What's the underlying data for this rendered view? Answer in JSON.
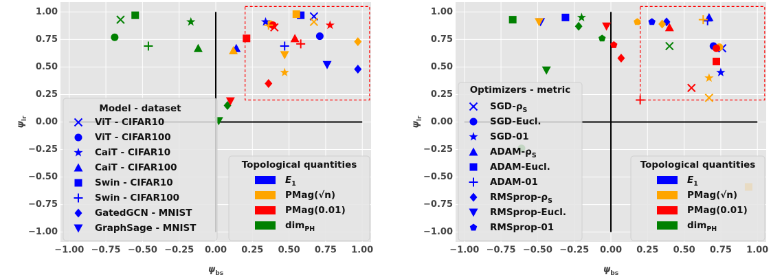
{
  "chart_data": [
    {
      "type": "scatter",
      "xlim": [
        -1.06,
        1.06
      ],
      "ylim": [
        -1.09,
        1.09
      ],
      "xticks": [
        {
          "value": -1,
          "label": "−1.00"
        },
        {
          "value": -0.75,
          "label": "−0.75"
        },
        {
          "value": -0.5,
          "label": "−0.50"
        },
        {
          "value": -0.25,
          "label": "−0.25"
        },
        {
          "value": 0,
          "label": "0.00"
        },
        {
          "value": 0.25,
          "label": "0.25"
        },
        {
          "value": 0.5,
          "label": "0.50"
        },
        {
          "value": 0.75,
          "label": "0.75"
        },
        {
          "value": 1,
          "label": "1.00"
        }
      ],
      "yticks": [
        {
          "value": -1,
          "label": "−1.00"
        },
        {
          "value": -0.75,
          "label": "−0.75"
        },
        {
          "value": -0.5,
          "label": "−0.50"
        },
        {
          "value": -0.25,
          "label": "−0.25"
        },
        {
          "value": 0,
          "label": "0.00"
        },
        {
          "value": 0.25,
          "label": "0.25"
        },
        {
          "value": 0.5,
          "label": "0.50"
        },
        {
          "value": 0.75,
          "label": "0.75"
        },
        {
          "value": 1,
          "label": "1.00"
        }
      ],
      "grid": true,
      "xlabel": {
        "text": "ψ",
        "sub": "bs"
      },
      "ylabel": {
        "text": "ψ",
        "sub": "lr"
      },
      "highlight": {
        "x": [
          0.2,
          1.05
        ],
        "y": [
          0.2,
          1.05
        ],
        "color": "#ff0000"
      },
      "marker_legend_title": "Model - dataset",
      "color_legend": {
        "title": "Topological quantities",
        "items": [
          {
            "text": "E",
            "sub": "1",
            "color": "#0000ff"
          },
          {
            "text": "PMag(√n)",
            "color": "#ffa500"
          },
          {
            "text": "PMag(0.01)",
            "color": "#ff0000"
          },
          {
            "text": "dim",
            "sub": "PH",
            "color": "#008000"
          }
        ]
      },
      "series": [
        {
          "name": {
            "text": "ViT - CIFAR10"
          },
          "marker": "x",
          "x": [
            0.67,
            0.67,
            0.4,
            -0.65
          ],
          "y": [
            0.96,
            0.91,
            0.86,
            0.93
          ]
        },
        {
          "name": {
            "text": "ViT - CIFAR100"
          },
          "marker": "o",
          "x": [
            0.71,
            0.37,
            0.39,
            -0.69
          ],
          "y": [
            0.78,
            0.89,
            0.88,
            0.77
          ]
        },
        {
          "name": {
            "text": "CaiT - CIFAR10"
          },
          "marker": "*",
          "x": [
            0.34,
            0.47,
            0.78,
            -0.17
          ],
          "y": [
            0.91,
            0.45,
            0.88,
            0.91
          ]
        },
        {
          "name": {
            "text": "CaiT - CIFAR100"
          },
          "marker": "^",
          "x": [
            0.14,
            0.12,
            0.54,
            -0.12
          ],
          "y": [
            0.67,
            0.65,
            0.76,
            0.67
          ]
        },
        {
          "name": {
            "text": "Swin - CIFAR10"
          },
          "marker": "s",
          "x": [
            0.58,
            0.55,
            0.21,
            -0.55
          ],
          "y": [
            0.97,
            0.98,
            0.76,
            0.97
          ]
        },
        {
          "name": {
            "text": "Swin - CIFAR100"
          },
          "marker": "+",
          "x": [
            0.47,
            0.36,
            0.58,
            -0.46
          ],
          "y": [
            0.69,
            0.88,
            0.71,
            0.69
          ]
        },
        {
          "name": {
            "text": "GatedGCN - MNIST"
          },
          "marker": "D",
          "x": [
            0.97,
            0.97,
            0.36,
            0.08
          ],
          "y": [
            0.48,
            0.73,
            0.35,
            0.15
          ]
        },
        {
          "name": {
            "text": "GraphSage - MNIST"
          },
          "marker": "v",
          "x": [
            0.76,
            0.47,
            0.1,
            0.02
          ],
          "y": [
            0.52,
            0.61,
            0.19,
            0.01
          ]
        }
      ]
    },
    {
      "type": "scatter",
      "xlim": [
        -1.06,
        1.06
      ],
      "ylim": [
        -1.09,
        1.09
      ],
      "xticks": [
        {
          "value": -1,
          "label": "−1.00"
        },
        {
          "value": -0.75,
          "label": "−0.75"
        },
        {
          "value": -0.5,
          "label": "−0.50"
        },
        {
          "value": -0.25,
          "label": "−0.25"
        },
        {
          "value": 0,
          "label": "0.00"
        },
        {
          "value": 0.25,
          "label": "0.25"
        },
        {
          "value": 0.5,
          "label": "0.50"
        },
        {
          "value": 0.75,
          "label": "0.75"
        },
        {
          "value": 1,
          "label": "1.00"
        }
      ],
      "yticks": [
        {
          "value": -1,
          "label": "−1.00"
        },
        {
          "value": -0.75,
          "label": "−0.75"
        },
        {
          "value": -0.5,
          "label": "−0.50"
        },
        {
          "value": -0.25,
          "label": "−0.25"
        },
        {
          "value": 0,
          "label": "0.00"
        },
        {
          "value": 0.25,
          "label": "0.25"
        },
        {
          "value": 0.5,
          "label": "0.50"
        },
        {
          "value": 0.75,
          "label": "0.75"
        },
        {
          "value": 1,
          "label": "1.00"
        }
      ],
      "grid": true,
      "xlabel": {
        "text": "ψ",
        "sub": "bs"
      },
      "ylabel": {
        "text": "ψ",
        "sub": "lr"
      },
      "highlight": {
        "x": [
          0.2,
          1.05
        ],
        "y": [
          0.2,
          1.05
        ],
        "color": "#ff0000"
      },
      "marker_legend_title": "Optimizers - metric",
      "color_legend": {
        "title": "Topological quantities",
        "items": [
          {
            "text": "E",
            "sub": "1",
            "color": "#0000ff"
          },
          {
            "text": "PMag(√n)",
            "color": "#ffa500"
          },
          {
            "text": "PMag(0.01)",
            "color": "#ff0000"
          },
          {
            "text": "dim",
            "sub": "PH",
            "color": "#008000"
          }
        ]
      },
      "series": [
        {
          "name": {
            "text": "SGD-ρ",
            "sub": "S"
          },
          "marker": "x",
          "x": [
            0.76,
            0.67,
            0.55,
            0.4
          ],
          "y": [
            0.67,
            0.22,
            0.31,
            0.69
          ]
        },
        {
          "name": {
            "text": "SGD-Eucl."
          },
          "marker": "o",
          "x": [
            0.7,
            0.74,
            0.72,
            -0.61
          ],
          "y": [
            0.69,
            0.68,
            0.67,
            -0.24
          ]
        },
        {
          "name": {
            "text": "SGD-01"
          },
          "marker": "*",
          "x": [
            0.75,
            0.67,
            null,
            -0.2
          ],
          "y": [
            0.45,
            0.4,
            null,
            0.95
          ]
        },
        {
          "name": {
            "text": "ADAM-ρ",
            "sub": "S"
          },
          "marker": "^",
          "x": [
            0.67,
            null,
            0.4,
            null
          ],
          "y": [
            0.95,
            null,
            0.86,
            null
          ]
        },
        {
          "name": {
            "text": "ADAM-Eucl."
          },
          "marker": "s",
          "x": [
            -0.31,
            0.94,
            0.72,
            -0.67
          ],
          "y": [
            0.95,
            -0.59,
            0.55,
            0.93
          ]
        },
        {
          "name": {
            "text": "ADAM-01"
          },
          "marker": "+",
          "x": [
            0.66,
            0.63,
            0.2,
            null
          ],
          "y": [
            0.92,
            0.93,
            0.2,
            null
          ]
        },
        {
          "name": {
            "text": "RMSprop-ρ",
            "sub": "S"
          },
          "marker": "D",
          "x": [
            0.38,
            0.35,
            0.07,
            -0.22
          ],
          "y": [
            0.91,
            0.89,
            0.58,
            0.87
          ]
        },
        {
          "name": {
            "text": "RMSprop-Eucl."
          },
          "marker": "v",
          "x": [
            -0.48,
            -0.49,
            -0.03,
            -0.44
          ],
          "y": [
            0.91,
            0.91,
            0.87,
            0.47
          ]
        },
        {
          "name": {
            "text": "RMSprop-01"
          },
          "marker": "p",
          "x": [
            0.28,
            0.18,
            0.02,
            -0.06
          ],
          "y": [
            0.91,
            0.91,
            0.7,
            0.76
          ]
        }
      ]
    }
  ]
}
